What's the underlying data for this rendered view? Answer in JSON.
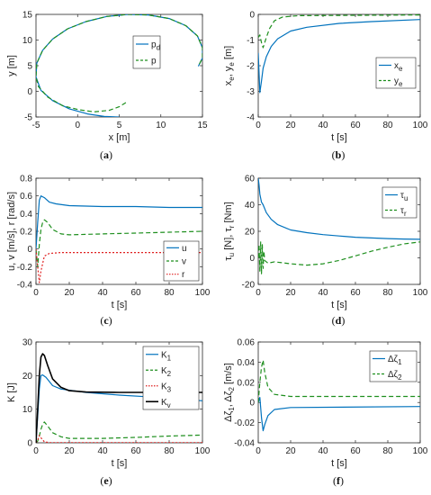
{
  "colors": {
    "blue": "#0072bd",
    "green": "#1e8f1e",
    "red": "#e02020",
    "black": "#000000"
  },
  "chart_data": [
    {
      "type": "line",
      "caption": "(a)",
      "xlabel": "x [m]",
      "ylabel": "y [m]",
      "xlim": [
        -5,
        15
      ],
      "ylim": [
        -5,
        15
      ],
      "xticks": [
        -5,
        0,
        5,
        10,
        15
      ],
      "yticks": [
        -5,
        0,
        5,
        10,
        15
      ],
      "legend_position": "right",
      "series": [
        {
          "name": "p",
          "name_sub": "d",
          "color": "blue",
          "dash": "solid",
          "points": [
            [
              5,
              -5
            ],
            [
              3.2,
              -4.9
            ],
            [
              1.2,
              -4.4
            ],
            [
              -1,
              -3.4
            ],
            [
              -3,
              -1.8
            ],
            [
              -4.4,
              0.2
            ],
            [
              -5,
              2.8
            ],
            [
              -4.9,
              5.5
            ],
            [
              -4.2,
              8
            ],
            [
              -3,
              10.2
            ],
            [
              -1.2,
              12.2
            ],
            [
              1,
              13.6
            ],
            [
              3.5,
              14.6
            ],
            [
              6,
              15
            ],
            [
              8.5,
              14.9
            ],
            [
              11,
              14.2
            ],
            [
              13,
              12.8
            ],
            [
              14.4,
              10.8
            ],
            [
              15,
              8.5
            ],
            [
              15,
              6.5
            ],
            [
              14.5,
              4.9
            ]
          ]
        },
        {
          "name": "p",
          "color": "green",
          "dash": "dashed",
          "points": [
            [
              5.8,
              -2.2
            ],
            [
              5,
              -3
            ],
            [
              3.8,
              -3.7
            ],
            [
              2,
              -4
            ],
            [
              0.2,
              -3.6
            ],
            [
              -1.8,
              -2.8
            ],
            [
              -3.6,
              -1.1
            ],
            [
              -4.7,
              0.9
            ],
            [
              -5,
              2.8
            ],
            [
              -4.9,
              5.5
            ],
            [
              -4.2,
              8
            ],
            [
              -3,
              10.2
            ],
            [
              -1.2,
              12.2
            ],
            [
              1,
              13.6
            ],
            [
              3.5,
              14.6
            ],
            [
              6,
              15
            ],
            [
              8.5,
              14.9
            ],
            [
              11,
              14.2
            ],
            [
              13,
              12.8
            ],
            [
              14.4,
              10.8
            ],
            [
              15,
              8.5
            ],
            [
              15,
              6.5
            ],
            [
              14.5,
              4.9
            ]
          ]
        }
      ]
    },
    {
      "type": "line",
      "caption": "(b)",
      "xlabel": "t [s]",
      "ylabel": "x_e, y_e [m]",
      "xlim": [
        0,
        100
      ],
      "ylim": [
        -4,
        0
      ],
      "xticks": [
        0,
        20,
        40,
        60,
        80,
        100
      ],
      "yticks": [
        -4,
        -3,
        -2,
        -1,
        0
      ],
      "legend_position": "right",
      "series": [
        {
          "name": "x",
          "name_sub": "e",
          "color": "blue",
          "dash": "solid",
          "points": [
            [
              0,
              -1.5
            ],
            [
              1,
              -3.05
            ],
            [
              2,
              -2.6
            ],
            [
              3,
              -2.1
            ],
            [
              5,
              -1.65
            ],
            [
              8,
              -1.25
            ],
            [
              12,
              -0.95
            ],
            [
              20,
              -0.65
            ],
            [
              30,
              -0.5
            ],
            [
              50,
              -0.35
            ],
            [
              70,
              -0.28
            ],
            [
              100,
              -0.2
            ]
          ]
        },
        {
          "name": "y",
          "name_sub": "e",
          "color": "green",
          "dash": "dashed",
          "points": [
            [
              0,
              -0.9
            ],
            [
              1,
              -0.8
            ],
            [
              2,
              -1.1
            ],
            [
              3,
              -1.3
            ],
            [
              5,
              -0.9
            ],
            [
              7,
              -0.55
            ],
            [
              10,
              -0.25
            ],
            [
              15,
              -0.1
            ],
            [
              25,
              -0.05
            ],
            [
              100,
              -0.02
            ]
          ]
        }
      ]
    },
    {
      "type": "line",
      "caption": "(c)",
      "xlabel": "t [s]",
      "ylabel": "u, v [m/s], r [rad/s]",
      "xlim": [
        0,
        100
      ],
      "ylim": [
        -0.4,
        0.8
      ],
      "xticks": [
        0,
        20,
        40,
        60,
        80,
        100
      ],
      "yticks": [
        -0.4,
        -0.2,
        0,
        0.2,
        0.4,
        0.6,
        0.8
      ],
      "legend_position": "lower right",
      "series": [
        {
          "name": "u",
          "color": "blue",
          "dash": "solid",
          "points": [
            [
              0,
              0
            ],
            [
              1,
              0.3
            ],
            [
              2,
              0.55
            ],
            [
              3,
              0.6
            ],
            [
              5,
              0.58
            ],
            [
              8,
              0.53
            ],
            [
              12,
              0.51
            ],
            [
              20,
              0.49
            ],
            [
              40,
              0.48
            ],
            [
              60,
              0.48
            ],
            [
              80,
              0.47
            ],
            [
              100,
              0.47
            ]
          ]
        },
        {
          "name": "v",
          "color": "green",
          "dash": "dashed",
          "points": [
            [
              0,
              0
            ],
            [
              1,
              -0.2
            ],
            [
              2,
              0.05
            ],
            [
              3,
              0.22
            ],
            [
              4,
              0.3
            ],
            [
              5,
              0.33
            ],
            [
              7,
              0.3
            ],
            [
              10,
              0.22
            ],
            [
              15,
              0.17
            ],
            [
              20,
              0.16
            ],
            [
              40,
              0.17
            ],
            [
              60,
              0.18
            ],
            [
              80,
              0.19
            ],
            [
              100,
              0.2
            ]
          ]
        },
        {
          "name": "r",
          "color": "red",
          "dash": "dotted",
          "points": [
            [
              0,
              0
            ],
            [
              1,
              -0.2
            ],
            [
              2,
              -0.38
            ],
            [
              3,
              -0.25
            ],
            [
              5,
              -0.08
            ],
            [
              8,
              -0.05
            ],
            [
              15,
              -0.04
            ],
            [
              100,
              -0.04
            ]
          ]
        }
      ]
    },
    {
      "type": "line",
      "caption": "(d)",
      "xlabel": "t [s]",
      "ylabel": "τ_u [N], τ_r [Nm]",
      "xlim": [
        0,
        100
      ],
      "ylim": [
        -20,
        60
      ],
      "xticks": [
        0,
        20,
        40,
        60,
        80,
        100
      ],
      "yticks": [
        -20,
        0,
        20,
        40,
        60
      ],
      "legend_position": "top-right",
      "series": [
        {
          "name": "τ",
          "name_sub": "u",
          "color": "blue",
          "dash": "solid",
          "points": [
            [
              0,
              60
            ],
            [
              0.5,
              55
            ],
            [
              1,
              48
            ],
            [
              2,
              42
            ],
            [
              3,
              40
            ],
            [
              5,
              34
            ],
            [
              8,
              29
            ],
            [
              12,
              25
            ],
            [
              20,
              21
            ],
            [
              30,
              19
            ],
            [
              40,
              17.5
            ],
            [
              50,
              16.5
            ],
            [
              60,
              15.5
            ],
            [
              70,
              15
            ],
            [
              80,
              14.5
            ],
            [
              90,
              14.2
            ],
            [
              100,
              14
            ]
          ]
        },
        {
          "name": "τ",
          "name_sub": "r",
          "color": "green",
          "dash": "dashed",
          "points": [
            [
              0,
              0
            ],
            [
              0.5,
              10
            ],
            [
              1,
              -10
            ],
            [
              1.5,
              12
            ],
            [
              2,
              -12
            ],
            [
              2.5,
              10
            ],
            [
              3,
              -8
            ],
            [
              3.5,
              5
            ],
            [
              4,
              -2
            ],
            [
              6,
              -4
            ],
            [
              10,
              -3
            ],
            [
              20,
              -4.5
            ],
            [
              30,
              -5.5
            ],
            [
              40,
              -4.5
            ],
            [
              50,
              -2
            ],
            [
              60,
              1.5
            ],
            [
              70,
              5
            ],
            [
              80,
              8
            ],
            [
              90,
              10.5
            ],
            [
              100,
              12
            ]
          ]
        }
      ]
    },
    {
      "type": "line",
      "caption": "(e)",
      "xlabel": "t [s]",
      "ylabel": "K [J]",
      "xlim": [
        0,
        100
      ],
      "ylim": [
        0,
        30
      ],
      "xticks": [
        0,
        20,
        40,
        60,
        80,
        100
      ],
      "yticks": [
        0,
        10,
        20,
        30
      ],
      "legend_position": "top-right",
      "series": [
        {
          "name": "K",
          "name_sub": "1",
          "color": "blue",
          "dash": "solid",
          "points": [
            [
              0,
              0
            ],
            [
              1,
              8
            ],
            [
              2,
              16
            ],
            [
              3,
              20
            ],
            [
              4,
              20.2
            ],
            [
              6,
              19.5
            ],
            [
              10,
              17
            ],
            [
              15,
              16
            ],
            [
              30,
              15
            ],
            [
              50,
              14.2
            ],
            [
              70,
              13.6
            ],
            [
              100,
              12.5
            ]
          ]
        },
        {
          "name": "K",
          "name_sub": "2",
          "color": "green",
          "dash": "dashed",
          "points": [
            [
              0,
              0
            ],
            [
              1,
              0.5
            ],
            [
              2,
              2
            ],
            [
              3,
              4
            ],
            [
              4,
              5.5
            ],
            [
              5,
              6.2
            ],
            [
              7,
              5
            ],
            [
              10,
              3
            ],
            [
              15,
              1.8
            ],
            [
              20,
              1.3
            ],
            [
              40,
              1.3
            ],
            [
              60,
              1.6
            ],
            [
              80,
              2
            ],
            [
              100,
              2.3
            ]
          ]
        },
        {
          "name": "K",
          "name_sub": "3",
          "color": "red",
          "dash": "dotted",
          "points": [
            [
              0,
              0
            ],
            [
              1,
              0.8
            ],
            [
              2,
              2.2
            ],
            [
              3,
              1.5
            ],
            [
              5,
              0.3
            ],
            [
              8,
              0.05
            ],
            [
              100,
              0.02
            ]
          ]
        },
        {
          "name": "K",
          "name_sub": "v",
          "color": "black",
          "dash": "solid",
          "points": [
            [
              0,
              0
            ],
            [
              1,
              10
            ],
            [
              2,
              20
            ],
            [
              3,
              25.5
            ],
            [
              4,
              26.5
            ],
            [
              5,
              26
            ],
            [
              7,
              23
            ],
            [
              10,
              19
            ],
            [
              15,
              16.5
            ],
            [
              20,
              15.5
            ],
            [
              30,
              15.1
            ],
            [
              50,
              15
            ],
            [
              100,
              15
            ]
          ]
        }
      ]
    },
    {
      "type": "line",
      "caption": "(f)",
      "xlabel": "t [s]",
      "ylabel": "Δζ_1, Δζ_2 [m/s]",
      "xlim": [
        0,
        100
      ],
      "ylim": [
        -0.04,
        0.06
      ],
      "xticks": [
        0,
        20,
        40,
        60,
        80,
        100
      ],
      "yticks": [
        -0.04,
        -0.02,
        0,
        0.02,
        0.04,
        0.06
      ],
      "legend_position": "top-right",
      "series": [
        {
          "name": "Δζ",
          "name_sub": "1",
          "color": "blue",
          "dash": "solid",
          "points": [
            [
              0,
              0
            ],
            [
              1,
              0.005
            ],
            [
              2,
              -0.015
            ],
            [
              3,
              -0.028
            ],
            [
              4,
              -0.022
            ],
            [
              6,
              -0.013
            ],
            [
              10,
              -0.007
            ],
            [
              20,
              -0.005
            ],
            [
              100,
              -0.004
            ]
          ]
        },
        {
          "name": "Δζ",
          "name_sub": "2",
          "color": "green",
          "dash": "dashed",
          "points": [
            [
              0,
              0
            ],
            [
              1,
              0.02
            ],
            [
              2,
              0.035
            ],
            [
              3,
              0.042
            ],
            [
              4,
              0.03
            ],
            [
              6,
              0.015
            ],
            [
              10,
              0.008
            ],
            [
              20,
              0.006
            ],
            [
              100,
              0.006
            ]
          ]
        }
      ]
    }
  ]
}
